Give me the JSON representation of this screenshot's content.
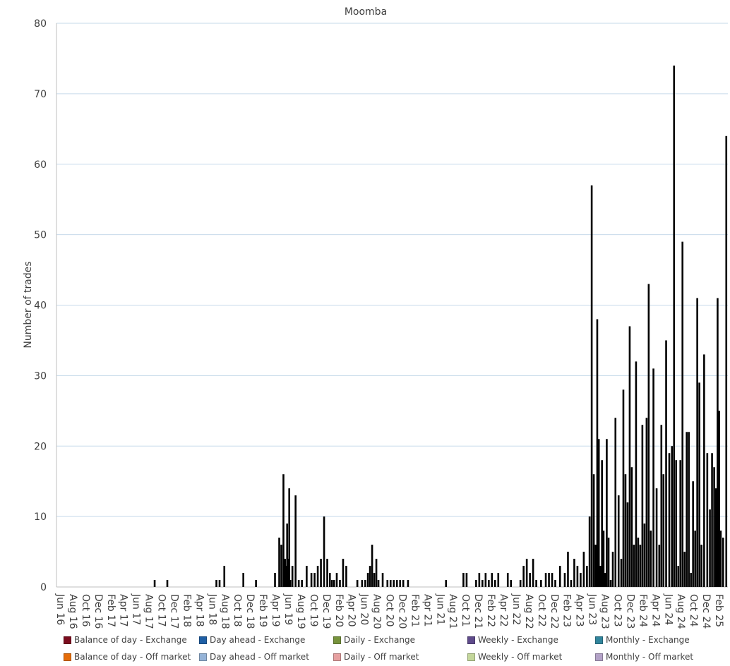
{
  "chart_data": {
    "type": "bar",
    "stacked": true,
    "title": "Moomba",
    "xlabel": "",
    "ylabel": "Number of trades",
    "ylim": [
      0,
      80
    ],
    "yticks": [
      0,
      10,
      20,
      30,
      40,
      50,
      60,
      70,
      80
    ],
    "grid": true,
    "legend_position": "bottom",
    "x_start": "Jun 16",
    "x_end": "Mar 25",
    "x_tick_labels": [
      "Jun 16",
      "Aug 16",
      "Oct 16",
      "Dec 16",
      "Feb 17",
      "Apr 17",
      "Jun 17",
      "Aug 17",
      "Oct 17",
      "Dec 17",
      "Feb 18",
      "Apr 18",
      "Jun 18",
      "Aug 18",
      "Oct 18",
      "Dec 18",
      "Feb 19",
      "Apr 19",
      "Jun 19",
      "Aug 19",
      "Oct 19",
      "Dec 19",
      "Feb 20",
      "Apr 20",
      "Jun 20",
      "Aug 20",
      "Oct 20",
      "Dec 20",
      "Feb 21",
      "Apr 21",
      "Jun 21",
      "Aug 21",
      "Oct 21",
      "Dec 21",
      "Feb 22",
      "Apr 22",
      "Jun 22",
      "Aug 22",
      "Oct 22",
      "Dec 22",
      "Feb 23",
      "Apr 23",
      "Jun 23",
      "Aug 23",
      "Oct 23",
      "Dec 23",
      "Feb 24",
      "Apr 24",
      "Jun 24",
      "Aug 24",
      "Oct 24",
      "Dec 24",
      "Feb 25"
    ],
    "series_visible": "Monthly - Off market",
    "points": [
      {
        "x": "Sep 17",
        "y": 1
      },
      {
        "x": "Nov 17",
        "y": 1
      },
      {
        "x": "Jul 18",
        "y": 1
      },
      {
        "x": "Jul 18",
        "y": 1
      },
      {
        "x": "Aug 18",
        "y": 3
      },
      {
        "x": "Nov 18",
        "y": 2
      },
      {
        "x": "Jan 19",
        "y": 1
      },
      {
        "x": "Apr 19",
        "y": 2
      },
      {
        "x": "May 19",
        "y": 7
      },
      {
        "x": "May 19",
        "y": 6
      },
      {
        "x": "May 19",
        "y": 16
      },
      {
        "x": "Jun 19",
        "y": 4
      },
      {
        "x": "Jun 19",
        "y": 3
      },
      {
        "x": "Jun 19",
        "y": 9
      },
      {
        "x": "Jun 19",
        "y": 4
      },
      {
        "x": "Jun 19",
        "y": 14
      },
      {
        "x": "Jun 19",
        "y": 1
      },
      {
        "x": "Jul 19",
        "y": 3
      },
      {
        "x": "Jul 19",
        "y": 13
      },
      {
        "x": "Aug 19",
        "y": 1
      },
      {
        "x": "Aug 19",
        "y": 1
      },
      {
        "x": "Sep 19",
        "y": 3
      },
      {
        "x": "Oct 19",
        "y": 2
      },
      {
        "x": "Oct 19",
        "y": 2
      },
      {
        "x": "Nov 19",
        "y": 3
      },
      {
        "x": "Nov 19",
        "y": 4
      },
      {
        "x": "Dec 19",
        "y": 10
      },
      {
        "x": "Dec 19",
        "y": 4
      },
      {
        "x": "Jan 20",
        "y": 2
      },
      {
        "x": "Jan 20",
        "y": 1
      },
      {
        "x": "Jan 20",
        "y": 1
      },
      {
        "x": "Feb 20",
        "y": 2
      },
      {
        "x": "Feb 20",
        "y": 1
      },
      {
        "x": "Mar 20",
        "y": 4
      },
      {
        "x": "Mar 20",
        "y": 3
      },
      {
        "x": "May 20",
        "y": 1
      },
      {
        "x": "Jun 20",
        "y": 1
      },
      {
        "x": "Jun 20",
        "y": 1
      },
      {
        "x": "Jul 20",
        "y": 2
      },
      {
        "x": "Jul 20",
        "y": 3
      },
      {
        "x": "Jul 20",
        "y": 6
      },
      {
        "x": "Aug 20",
        "y": 2
      },
      {
        "x": "Aug 20",
        "y": 4
      },
      {
        "x": "Aug 20",
        "y": 1
      },
      {
        "x": "Sep 20",
        "y": 2
      },
      {
        "x": "Oct 20",
        "y": 1
      },
      {
        "x": "Oct 20",
        "y": 1
      },
      {
        "x": "Nov 20",
        "y": 1
      },
      {
        "x": "Nov 20",
        "y": 1
      },
      {
        "x": "Dec 20",
        "y": 1
      },
      {
        "x": "Dec 20",
        "y": 1
      },
      {
        "x": "Jan 21",
        "y": 1
      },
      {
        "x": "Jul 21",
        "y": 1
      },
      {
        "x": "Oct 21",
        "y": 2
      },
      {
        "x": "Oct 21",
        "y": 2
      },
      {
        "x": "Dec 21",
        "y": 1
      },
      {
        "x": "Dec 21",
        "y": 2
      },
      {
        "x": "Jan 22",
        "y": 1
      },
      {
        "x": "Jan 22",
        "y": 2
      },
      {
        "x": "Feb 22",
        "y": 1
      },
      {
        "x": "Feb 22",
        "y": 2
      },
      {
        "x": "Mar 22",
        "y": 1
      },
      {
        "x": "Mar 22",
        "y": 2
      },
      {
        "x": "May 22",
        "y": 2
      },
      {
        "x": "May 22",
        "y": 1
      },
      {
        "x": "Jul 22",
        "y": 1
      },
      {
        "x": "Jul 22",
        "y": 3
      },
      {
        "x": "Aug 22",
        "y": 4
      },
      {
        "x": "Aug 22",
        "y": 2
      },
      {
        "x": "Sep 22",
        "y": 4
      },
      {
        "x": "Sep 22",
        "y": 1
      },
      {
        "x": "Oct 22",
        "y": 1
      },
      {
        "x": "Nov 22",
        "y": 2
      },
      {
        "x": "Nov 22",
        "y": 2
      },
      {
        "x": "Dec 22",
        "y": 2
      },
      {
        "x": "Dec 22",
        "y": 1
      },
      {
        "x": "Jan 23",
        "y": 3
      },
      {
        "x": "Feb 23",
        "y": 2
      },
      {
        "x": "Feb 23",
        "y": 5
      },
      {
        "x": "Mar 23",
        "y": 1
      },
      {
        "x": "Mar 23",
        "y": 4
      },
      {
        "x": "Apr 23",
        "y": 3
      },
      {
        "x": "Apr 23",
        "y": 2
      },
      {
        "x": "May 23",
        "y": 5
      },
      {
        "x": "May 23",
        "y": 3
      },
      {
        "x": "Jun 23",
        "y": 10
      },
      {
        "x": "Jun 23",
        "y": 57
      },
      {
        "x": "Jun 23",
        "y": 16
      },
      {
        "x": "Jul 23",
        "y": 6
      },
      {
        "x": "Jul 23",
        "y": 38
      },
      {
        "x": "Jul 23",
        "y": 21
      },
      {
        "x": "Jul 23",
        "y": 3
      },
      {
        "x": "Aug 23",
        "y": 18
      },
      {
        "x": "Aug 23",
        "y": 8
      },
      {
        "x": "Aug 23",
        "y": 2
      },
      {
        "x": "Aug 23",
        "y": 21
      },
      {
        "x": "Sep 23",
        "y": 7
      },
      {
        "x": "Sep 23",
        "y": 1
      },
      {
        "x": "Sep 23",
        "y": 5
      },
      {
        "x": "Oct 23",
        "y": 24
      },
      {
        "x": "Oct 23",
        "y": 13
      },
      {
        "x": "Nov 23",
        "y": 4
      },
      {
        "x": "Nov 23",
        "y": 28
      },
      {
        "x": "Nov 23",
        "y": 16
      },
      {
        "x": "Dec 23",
        "y": 12
      },
      {
        "x": "Dec 23",
        "y": 37
      },
      {
        "x": "Dec 23",
        "y": 17
      },
      {
        "x": "Jan 24",
        "y": 6
      },
      {
        "x": "Jan 24",
        "y": 32
      },
      {
        "x": "Jan 24",
        "y": 7
      },
      {
        "x": "Feb 24",
        "y": 6
      },
      {
        "x": "Feb 24",
        "y": 23
      },
      {
        "x": "Feb 24",
        "y": 9
      },
      {
        "x": "Mar 24",
        "y": 24
      },
      {
        "x": "Mar 24",
        "y": 43
      },
      {
        "x": "Mar 24",
        "y": 8
      },
      {
        "x": "Apr 24",
        "y": 31
      },
      {
        "x": "Apr 24",
        "y": 14
      },
      {
        "x": "May 24",
        "y": 6
      },
      {
        "x": "May 24",
        "y": 23
      },
      {
        "x": "May 24",
        "y": 16
      },
      {
        "x": "Jun 24",
        "y": 35
      },
      {
        "x": "Jun 24",
        "y": 19
      },
      {
        "x": "Jul 24",
        "y": 20
      },
      {
        "x": "Jul 24",
        "y": 74
      },
      {
        "x": "Jul 24",
        "y": 18
      },
      {
        "x": "Aug 24",
        "y": 3
      },
      {
        "x": "Aug 24",
        "y": 18
      },
      {
        "x": "Aug 24",
        "y": 49
      },
      {
        "x": "Sep 24",
        "y": 5
      },
      {
        "x": "Sep 24",
        "y": 22
      },
      {
        "x": "Sep 24",
        "y": 22
      },
      {
        "x": "Oct 24",
        "y": 2
      },
      {
        "x": "Oct 24",
        "y": 15
      },
      {
        "x": "Oct 24",
        "y": 8
      },
      {
        "x": "Nov 24",
        "y": 41
      },
      {
        "x": "Nov 24",
        "y": 29
      },
      {
        "x": "Nov 24",
        "y": 6
      },
      {
        "x": "Dec 24",
        "y": 33
      },
      {
        "x": "Dec 24",
        "y": 19
      },
      {
        "x": "Jan 25",
        "y": 11
      },
      {
        "x": "Jan 25",
        "y": 19
      },
      {
        "x": "Jan 25",
        "y": 17
      },
      {
        "x": "Feb 25",
        "y": 14
      },
      {
        "x": "Feb 25",
        "y": 41
      },
      {
        "x": "Feb 25",
        "y": 25
      },
      {
        "x": "Feb 25",
        "y": 8
      },
      {
        "x": "Mar 25",
        "y": 7
      },
      {
        "x": "Mar 25",
        "y": 64
      }
    ],
    "legend": [
      {
        "name": "Balance of day - Exchange",
        "color": "#7b0c1e"
      },
      {
        "name": "Day ahead - Exchange",
        "color": "#1f5fa5"
      },
      {
        "name": "Daily - Exchange",
        "color": "#77933c"
      },
      {
        "name": "Weekly - Exchange",
        "color": "#5f4b8b"
      },
      {
        "name": "Monthly - Exchange",
        "color": "#31859c"
      },
      {
        "name": "Balance of day - Off market",
        "color": "#e46c0a"
      },
      {
        "name": "Day ahead - Off market",
        "color": "#95b3d7"
      },
      {
        "name": "Daily - Off market",
        "color": "#e6a0a0"
      },
      {
        "name": "Weekly - Off market",
        "color": "#c4d79b"
      },
      {
        "name": "Monthly - Off market",
        "color": "#b3a2c7"
      }
    ],
    "bar_color": "#000000",
    "grid_color": "#c6d9ea",
    "axis_color": "#bfbfbf"
  }
}
